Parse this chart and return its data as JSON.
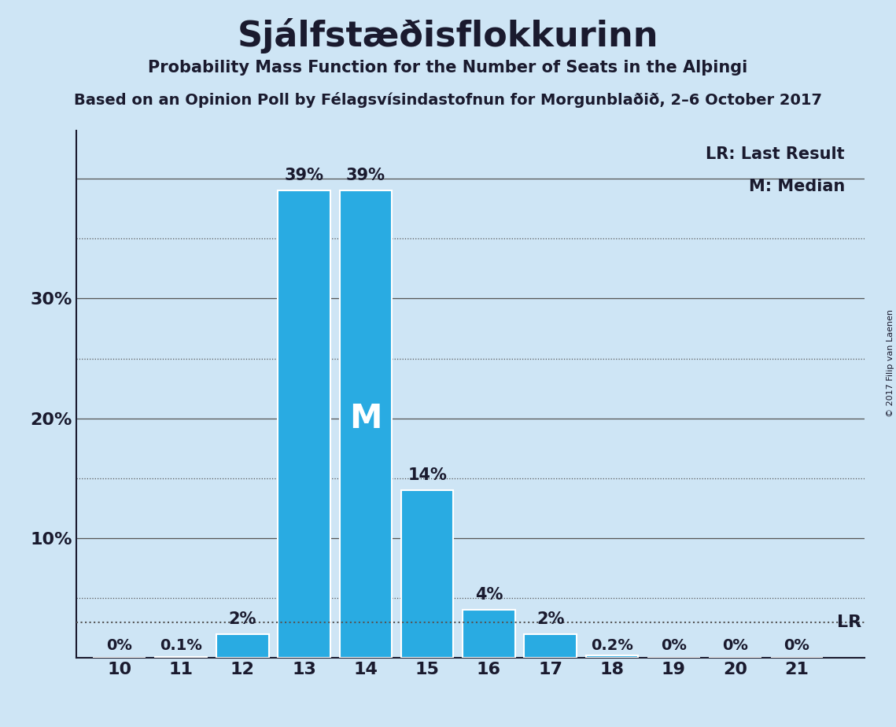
{
  "title": "Sjálfstæðisflokkurinn",
  "subtitle1": "Probability Mass Function for the Number of Seats in the Alþingi",
  "subtitle2": "Based on an Opinion Poll by Félagsvísindastofnun for Morgunblaðið, 2–6 October 2017",
  "copyright": "© 2017 Filip van Laenen",
  "seats": [
    10,
    11,
    12,
    13,
    14,
    15,
    16,
    17,
    18,
    19,
    20,
    21
  ],
  "probabilities": [
    0.0,
    0.1,
    2.0,
    39.0,
    39.0,
    14.0,
    4.0,
    2.0,
    0.2,
    0.0,
    0.0,
    0.0
  ],
  "labels": [
    "0%",
    "0.1%",
    "2%",
    "39%",
    "39%",
    "14%",
    "4%",
    "2%",
    "0.2%",
    "0%",
    "0%",
    "0%"
  ],
  "bar_color": "#29ABE2",
  "bar_edge_color": "#FFFFFF",
  "background_color": "#CEE5F5",
  "title_color": "#1A1A2E",
  "text_color": "#1A1A2E",
  "median_seat": 14,
  "lr_value": 3.0,
  "ylim_max": 44,
  "solid_yticks": [
    10,
    20,
    30,
    40
  ],
  "solid_ytick_labels": [
    "10%",
    "20%",
    "30%",
    ""
  ],
  "dotted_lines": [
    5,
    15,
    25,
    35
  ],
  "grid_color": "#555555",
  "bar_width": 0.85
}
